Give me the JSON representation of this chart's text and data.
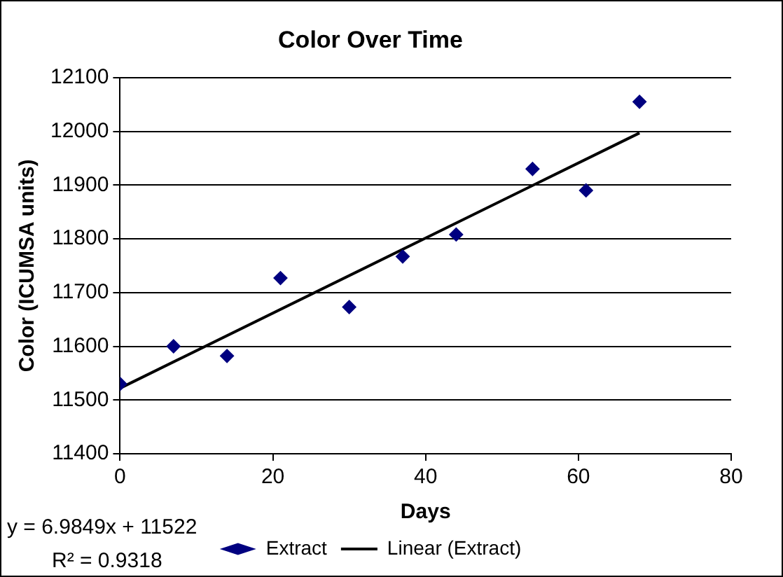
{
  "chart_data": {
    "type": "scatter",
    "title": "Color Over Time",
    "xlabel": "Days",
    "ylabel": "Color (ICUMSA units)",
    "xlim": [
      0,
      80
    ],
    "xticks": [
      0,
      20,
      40,
      60,
      80
    ],
    "ylim": [
      11400,
      12100
    ],
    "yticks": [
      11400,
      11500,
      11600,
      11700,
      11800,
      11900,
      12000,
      12100
    ],
    "grid": "y",
    "legend": "bottom",
    "series": [
      {
        "name": "Extract",
        "marker": "diamond",
        "color": "#000080",
        "x": [
          0,
          7,
          14,
          21,
          30,
          37,
          44,
          54,
          61,
          68
        ],
        "values": [
          11530,
          11600,
          11582,
          11727,
          11673,
          11767,
          11808,
          11930,
          11890,
          12055
        ]
      },
      {
        "name": "Linear (Extract)",
        "type": "line",
        "marker": "none",
        "color": "#000000",
        "x": [
          0,
          68
        ],
        "values": [
          11522,
          11997
        ]
      }
    ],
    "annotations": [
      "y = 6.9849x + 11522",
      "R² = 0.9318"
    ]
  }
}
